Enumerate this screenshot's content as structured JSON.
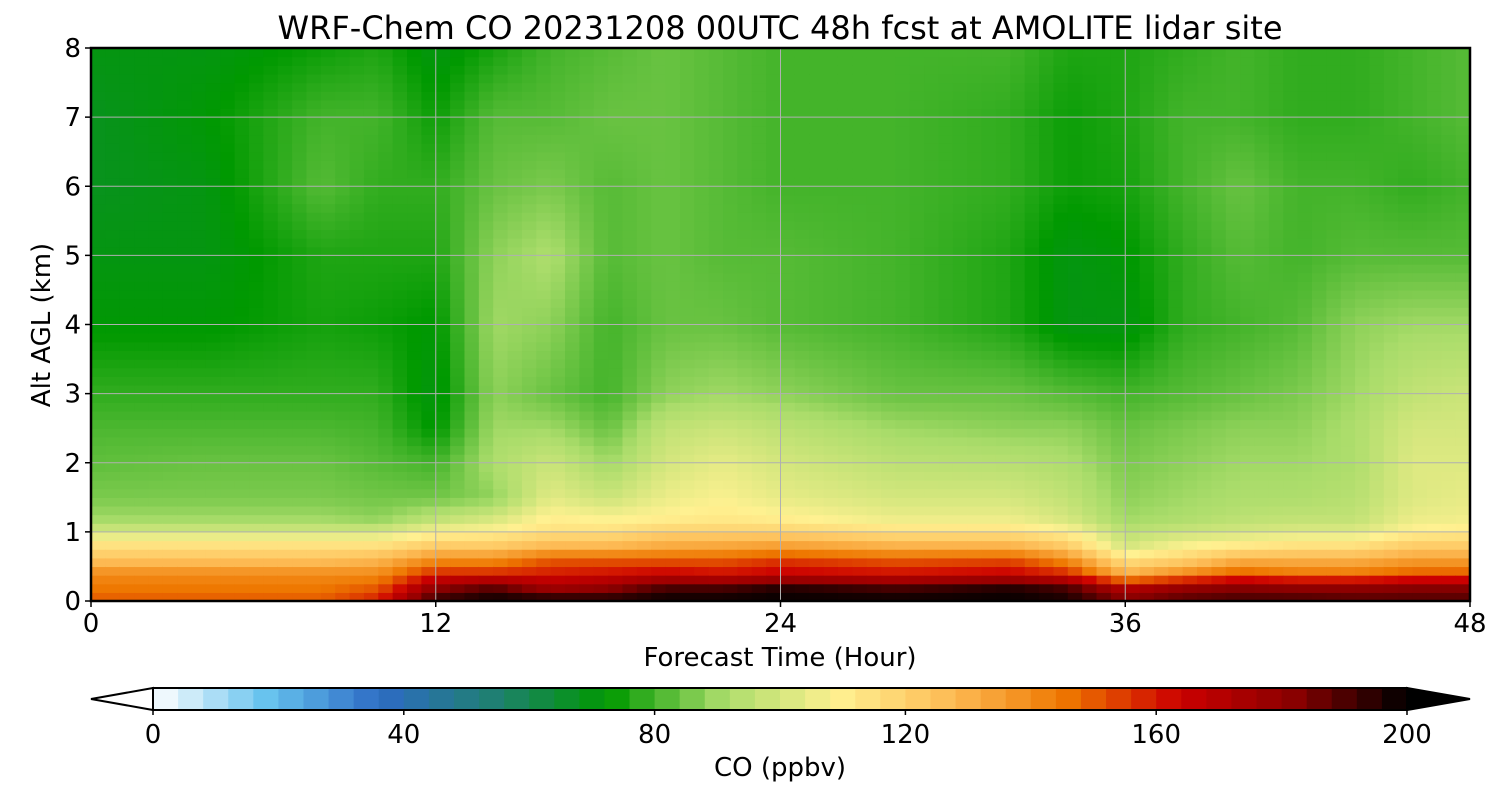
{
  "chart_data": {
    "type": "heatmap",
    "title": "WRF-Chem CO  20231208 00UTC 48h fcst at AMOLITE lidar site",
    "xlabel": "Forecast Time (Hour)",
    "ylabel": "Alt AGL (km)",
    "xlim": [
      0,
      48
    ],
    "ylim": [
      0,
      8
    ],
    "x_ticks": [
      "0",
      "12",
      "24",
      "36",
      "48"
    ],
    "y_ticks": [
      "0",
      "1",
      "2",
      "3",
      "4",
      "5",
      "6",
      "7",
      "8"
    ],
    "grid": true,
    "colorbar": {
      "label": "CO  (ppbv)",
      "range": [
        0,
        200
      ],
      "ticks": [
        "0",
        "40",
        "80",
        "120",
        "160",
        "200"
      ],
      "extend": "both",
      "colors": [
        "#ffffff",
        "#66c2ee",
        "#2d6bc4",
        "#1f8070",
        "#009900",
        "#a9dc6a",
        "#fff191",
        "#fdbb55",
        "#ee7700",
        "#cc0000",
        "#8a0000",
        "#000000"
      ]
    },
    "times_hour": [
      0,
      4,
      8,
      10,
      12,
      14,
      16,
      18,
      20,
      22,
      24,
      28,
      32,
      34,
      36,
      38,
      40,
      42,
      44,
      46,
      48
    ],
    "altitudes_km": [
      0,
      0.2,
      0.4,
      0.6,
      0.8,
      1.0,
      1.2,
      1.5,
      2.0,
      2.5,
      3.0,
      4.0,
      5.0,
      6.0,
      7.0,
      8.0
    ],
    "co_ppbv": [
      [
        150,
        150,
        150,
        160,
        195,
        200,
        200,
        198,
        200,
        200,
        200,
        200,
        200,
        198,
        185,
        190,
        192,
        192,
        190,
        190,
        190
      ],
      [
        145,
        145,
        145,
        150,
        180,
        188,
        175,
        180,
        190,
        190,
        195,
        190,
        195,
        190,
        170,
        178,
        182,
        180,
        180,
        182,
        182
      ],
      [
        140,
        140,
        140,
        140,
        158,
        158,
        160,
        162,
        165,
        162,
        165,
        162,
        165,
        158,
        130,
        140,
        150,
        145,
        145,
        150,
        150
      ],
      [
        125,
        125,
        125,
        128,
        140,
        140,
        150,
        150,
        150,
        150,
        155,
        150,
        152,
        140,
        115,
        120,
        130,
        130,
        130,
        135,
        135
      ],
      [
        115,
        115,
        115,
        115,
        122,
        122,
        128,
        128,
        132,
        133,
        135,
        130,
        130,
        122,
        100,
        108,
        112,
        115,
        115,
        122,
        122
      ],
      [
        100,
        100,
        100,
        100,
        108,
        110,
        115,
        115,
        120,
        120,
        120,
        115,
        115,
        110,
        95,
        98,
        100,
        102,
        102,
        110,
        112
      ],
      [
        90,
        90,
        90,
        88,
        95,
        100,
        110,
        108,
        110,
        112,
        110,
        105,
        105,
        100,
        90,
        92,
        95,
        96,
        96,
        105,
        106
      ],
      [
        86,
        86,
        86,
        85,
        85,
        88,
        103,
        98,
        105,
        108,
        104,
        100,
        100,
        96,
        88,
        90,
        92,
        92,
        94,
        102,
        104
      ],
      [
        83,
        84,
        84,
        82,
        80,
        92,
        98,
        90,
        100,
        104,
        100,
        95,
        94,
        92,
        86,
        88,
        90,
        90,
        92,
        102,
        102
      ],
      [
        81,
        81,
        81,
        80,
        72,
        90,
        90,
        84,
        96,
        98,
        95,
        90,
        88,
        88,
        84,
        86,
        88,
        88,
        92,
        100,
        100
      ],
      [
        78,
        78,
        78,
        78,
        70,
        88,
        84,
        80,
        88,
        90,
        88,
        84,
        84,
        82,
        80,
        82,
        84,
        86,
        90,
        96,
        98
      ],
      [
        72,
        72,
        75,
        74,
        72,
        90,
        88,
        80,
        84,
        84,
        82,
        80,
        76,
        70,
        70,
        78,
        80,
        82,
        88,
        90,
        90
      ],
      [
        70,
        70,
        76,
        76,
        76,
        88,
        92,
        82,
        84,
        82,
        82,
        80,
        76,
        70,
        72,
        78,
        82,
        80,
        82,
        82,
        82
      ],
      [
        68,
        70,
        82,
        78,
        78,
        84,
        86,
        82,
        84,
        82,
        80,
        80,
        78,
        74,
        75,
        80,
        84,
        80,
        80,
        78,
        80
      ],
      [
        68,
        72,
        80,
        80,
        74,
        82,
        82,
        84,
        84,
        82,
        80,
        80,
        78,
        74,
        76,
        80,
        80,
        78,
        78,
        80,
        82
      ],
      [
        70,
        70,
        74,
        76,
        70,
        75,
        80,
        82,
        84,
        82,
        80,
        80,
        80,
        76,
        76,
        78,
        80,
        78,
        78,
        80,
        82
      ]
    ]
  }
}
